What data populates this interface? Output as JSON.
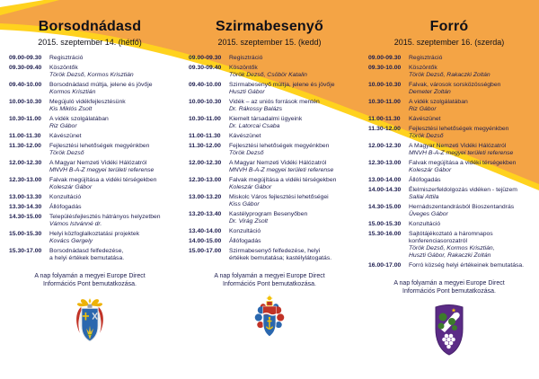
{
  "theme": {
    "swoosh_orange": "#F4A445",
    "swoosh_yellow": "#FFD21E",
    "text_color": "#1D1D4F",
    "crest1_blue": "#2A67AE",
    "crest1_red": "#C13327",
    "crest1_gold": "#F3C208",
    "crest3_purple": "#5B2B86",
    "crest_green": "#3C7C2B"
  },
  "columns": [
    {
      "title": "Borsodnádasd",
      "date": "2015. szeptember 14. (hétfő)",
      "crest": "borsodnadasd-coat-of-arms",
      "footer": "A nap folyamán a megyei Europe Direct\nInformációs Pont bemutatkozása.",
      "rows": [
        {
          "time": "09.00-09.30",
          "title": "Regisztráció"
        },
        {
          "time": "09.30-09.40",
          "title": "Köszöntők",
          "speaker": "Török Dezső, Kormos Krisztián"
        },
        {
          "time": "09.40-10.00",
          "title": "Borsodnádasd múltja, jelene és jövője",
          "speaker": "Kormos Krisztián"
        },
        {
          "time": "10.00-10.30",
          "title": "Megújuló vidékfejlesztésünk",
          "speaker": "Kis Miklós Zsolt"
        },
        {
          "time": "10.30-11.00",
          "title": "A  vidék szolgálatában",
          "speaker": "Riz Gábor"
        },
        {
          "time": "11.00-11.30",
          "title": "Kávészünet"
        },
        {
          "time": "11.30-12.00",
          "title": "Fejlesztési lehetőségek megyénkben",
          "speaker": "Török Dezső"
        },
        {
          "time": "12.00-12.30",
          "title": "A Magyar Nemzeti Vidéki Hálózatról",
          "speaker": "MNVH B-A-Z megyei területi referense"
        },
        {
          "time": "12.30-13.00",
          "title": "Falvak megújítása a vidéki térségekben",
          "speaker": "Koleszár Gábor"
        },
        {
          "time": "13.00-13.30",
          "title": "Konzultáció"
        },
        {
          "time": "13.30-14.30",
          "title": "Állófogadás"
        },
        {
          "time": "14.30-15.00",
          "title": "Településfejlesztés hátrányos helyzetben",
          "speaker": "Vámos Istvánné dr."
        },
        {
          "time": "15.00-15.30",
          "title": "Helyi közfoglalkoztatási projektek",
          "speaker": "Kovács Gergely"
        },
        {
          "time": "15.30-17.00",
          "title": "Borsodnádasd felfedezése,\na helyi értékek bemutatása."
        }
      ]
    },
    {
      "title": "Szirmabesenyő",
      "date": "2015. szeptember 15. (kedd)",
      "crest": "szirmabesenyo-coat-of-arms",
      "footer": "A nap folyamán a megyei Europe Direct\nInformációs Pont bemutatkozása.",
      "rows": [
        {
          "time": "09.00-09.30",
          "title": "Regisztráció"
        },
        {
          "time": "09.30-09.40",
          "title": "Köszöntők",
          "speaker": "Török Dezső, Csöbör Katalin"
        },
        {
          "time": "09.40-10.00",
          "title": "Szirmabesenyő múltja, jelene és jövője",
          "speaker": "Huszti Gábor"
        },
        {
          "time": "10.00-10.30",
          "title": "Vidék – az uniós források mentén",
          "speaker": "Dr. Rákossy Balázs"
        },
        {
          "time": "10.30-11.00",
          "title": "Kiemelt társadalmi ügyeink",
          "speaker": "Dr. Latorcai Csaba"
        },
        {
          "time": "11.00-11.30",
          "title": "Kávészünet"
        },
        {
          "time": "11.30-12.00",
          "title": "Fejlesztési lehetőségek megyénkben",
          "speaker": "Török Dezső"
        },
        {
          "time": "12.00-12.30",
          "title": "A Magyar Nemzeti Vidéki Hálózatról",
          "speaker": "MNVH B-A-Z megyei területi referense"
        },
        {
          "time": "12.30-13.00",
          "title": "Falvak megújítása a vidéki térségekben",
          "speaker": "Koleszár Gábor"
        },
        {
          "time": "13.00-13.20",
          "title": "Miskolc Város fejlesztési lehetőségei",
          "speaker": "Kiss Gábor"
        },
        {
          "time": "13.20-13.40",
          "title": "Kastélyprogram Besenyőben",
          "speaker": "Dr. Virág Zsolt"
        },
        {
          "time": "13.40-14.00",
          "title": "Konzultáció"
        },
        {
          "time": "14.00-15.00",
          "title": "Állófogadás"
        },
        {
          "time": "15.00-17.00",
          "title": "Szirmabesenyő felfedezése, helyi\nértékek bemutatása; kastélylátogatás."
        }
      ]
    },
    {
      "title": "Forró",
      "date": "2015. szeptember 16. (szerda)",
      "crest": "forro-coat-of-arms",
      "footer": "A nap folyamán a megyei Europe Direct\nInformációs Pont bemutatkozása.",
      "rows": [
        {
          "time": "09.00-09.30",
          "title": "Regisztráció"
        },
        {
          "time": "09.30-10.00",
          "title": "Köszöntők",
          "speaker": "Török Dezső, Rakaczki Zoltán"
        },
        {
          "time": "10.00-10.30",
          "title": "Falvak, városok sorsközösségben",
          "speaker": "Demeter Zoltán"
        },
        {
          "time": "10.30-11.00",
          "title": "A  vidék szolgálatában",
          "speaker": "Riz Gábor"
        },
        {
          "time": "11.00-11.30",
          "title": "Kávészünet"
        },
        {
          "time": "11.30-12.00",
          "title": "Fejlesztési lehetőségek megyénkben",
          "speaker": "Török Dezső"
        },
        {
          "time": "12.00-12.30",
          "title": "A Magyar Nemzeti Vidéki Hálózatról",
          "speaker": "MNVH B-A-Z megyei területi referense"
        },
        {
          "time": "12.30-13.00",
          "title": "Falvak megújítása a vidéki térségekben",
          "speaker": "Koleszár Gábor"
        },
        {
          "time": "13.00-14.00",
          "title": "Állófogadás"
        },
        {
          "time": "14.00-14.30",
          "title": "Élelmiszerfeldolgozás vidéken - tejüzem",
          "speaker": "Sallai Attila"
        },
        {
          "time": "14.30-15.00",
          "title": "Hernádszentandrásból Bioszentandrás",
          "speaker": "Üveges Gábor"
        },
        {
          "time": "15.00-15.30",
          "title": "Konzultáció"
        },
        {
          "time": "15.30-16.00",
          "title": "Sajtótájékoztató a háromnapos\nkonferenciasorozatról",
          "speaker": "Török Dezső, Kormos Krisztián,\nHuszti Gábor, Rakaczki Zoltán"
        },
        {
          "time": "16.00-17.00",
          "title": "Forró község helyi értékeinek bemutatása."
        }
      ]
    }
  ]
}
